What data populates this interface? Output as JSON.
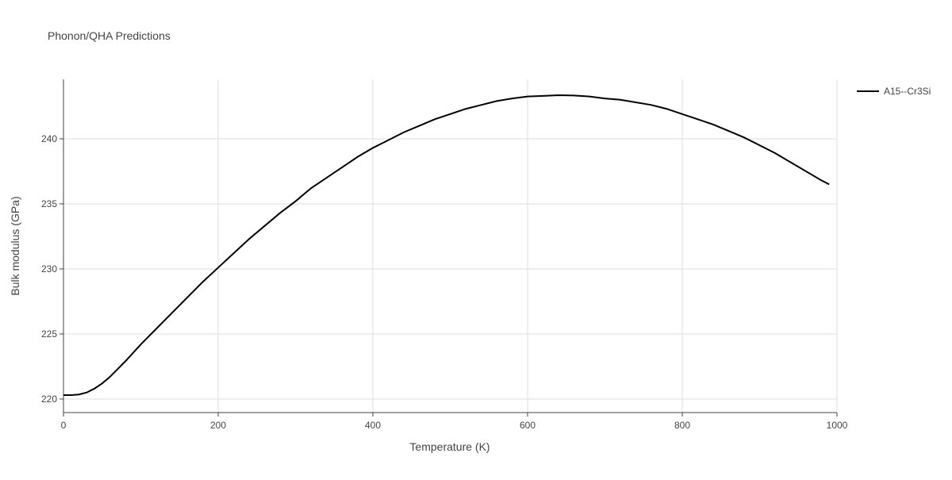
{
  "chart_data": {
    "type": "line",
    "title": "Phonon/QHA Predictions",
    "x_label": "Temperature (K)",
    "y_label": "Bulk modulus (GPa)",
    "x": [
      0,
      10,
      20,
      30,
      40,
      50,
      60,
      80,
      100,
      120,
      140,
      160,
      180,
      200,
      220,
      240,
      260,
      280,
      300,
      320,
      340,
      360,
      380,
      400,
      420,
      440,
      460,
      480,
      500,
      520,
      540,
      560,
      580,
      600,
      620,
      640,
      660,
      680,
      700,
      720,
      740,
      760,
      780,
      800,
      820,
      840,
      860,
      880,
      900,
      920,
      940,
      960,
      980,
      990
    ],
    "series": [
      {
        "name": "A15--Cr3Si",
        "color": "#000000",
        "values": [
          220.3,
          220.3,
          220.35,
          220.5,
          220.8,
          221.2,
          221.7,
          222.9,
          224.2,
          225.4,
          226.6,
          227.8,
          229.0,
          230.1,
          231.2,
          232.3,
          233.3,
          234.3,
          235.2,
          236.2,
          237.0,
          237.8,
          238.6,
          239.3,
          239.9,
          240.5,
          241.0,
          241.5,
          241.9,
          242.3,
          242.6,
          242.9,
          243.1,
          243.25,
          243.3,
          243.35,
          243.33,
          243.25,
          243.1,
          243.0,
          242.8,
          242.6,
          242.3,
          241.9,
          241.5,
          241.1,
          240.6,
          240.1,
          239.5,
          238.9,
          238.2,
          237.5,
          236.8,
          236.5
        ]
      }
    ],
    "xlim": [
      0,
      1000
    ],
    "xticks": [
      0,
      200,
      400,
      600,
      800,
      1000
    ],
    "ylim": [
      218.96,
      244.57
    ],
    "yticks": [
      220,
      225,
      230,
      235,
      240
    ],
    "grid": true,
    "legend": "right"
  }
}
